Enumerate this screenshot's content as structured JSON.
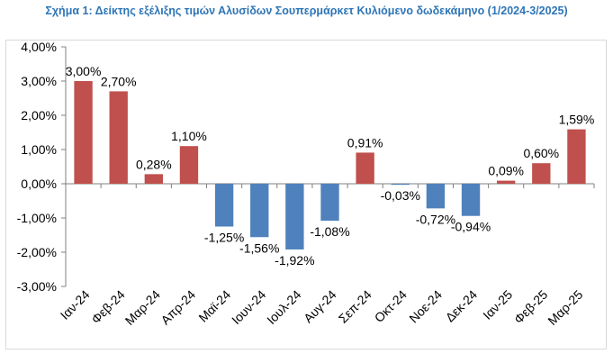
{
  "chart_data": {
    "type": "bar",
    "title": "Σχήμα 1: Δείκτης εξέλιξης τιμών Αλυσίδων Σουπερμάρκετ Κυλιόμενο δωδεκάμηνο (1/2024-3/2025)",
    "categories": [
      "Ιαν-24",
      "Φεβ-24",
      "Μαρ-24",
      "Απρ-24",
      "Μαϊ-24",
      "Ιουν-24",
      "Ιουλ-24",
      "Αυγ-24",
      "Σεπ-24",
      "Οκτ-24",
      "Νοε-24",
      "Δεκ-24",
      "Ιαν-25",
      "Φεβ-25",
      "Μαρ-25"
    ],
    "values": [
      3.0,
      2.7,
      0.28,
      1.1,
      -1.25,
      -1.56,
      -1.92,
      -1.08,
      0.91,
      -0.03,
      -0.72,
      -0.94,
      0.09,
      0.6,
      1.59
    ],
    "value_labels": [
      "3,00%",
      "2,70%",
      "0,28%",
      "1,10%",
      "-1,25%",
      "-1,56%",
      "-1,92%",
      "-1,08%",
      "0,91%",
      "-0,03%",
      "-0,72%",
      "-0,94%",
      "0,09%",
      "0,60%",
      "1,59%"
    ],
    "ylim": [
      -3,
      4
    ],
    "yticks": [
      4,
      3,
      2,
      1,
      0,
      -1,
      -2,
      -3
    ],
    "ytick_labels": [
      "4,00%",
      "3,00%",
      "2,00%",
      "1,00%",
      "0,00%",
      "-1,00%",
      "-2,00%",
      "-3,00%"
    ],
    "xlabel": "",
    "ylabel": "",
    "grid": false,
    "legend": "none",
    "colors": {
      "positive": "#c0504d",
      "negative": "#4f81bd"
    }
  }
}
